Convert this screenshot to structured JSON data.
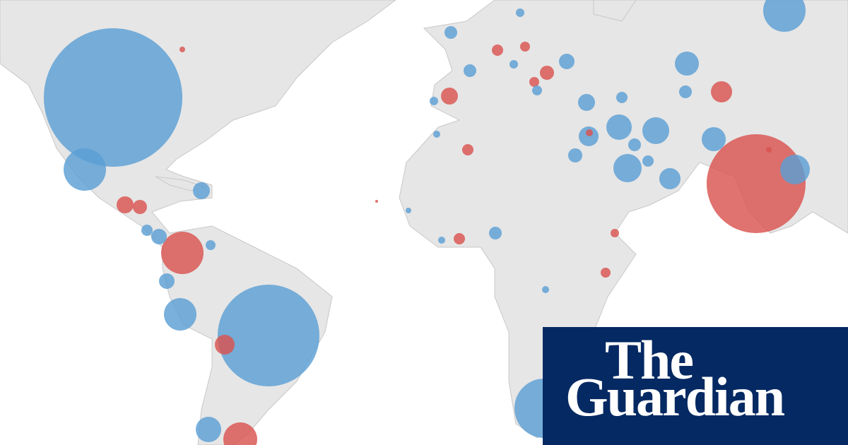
{
  "logo": {
    "line1": "The",
    "line2": "Guardian"
  }
}
